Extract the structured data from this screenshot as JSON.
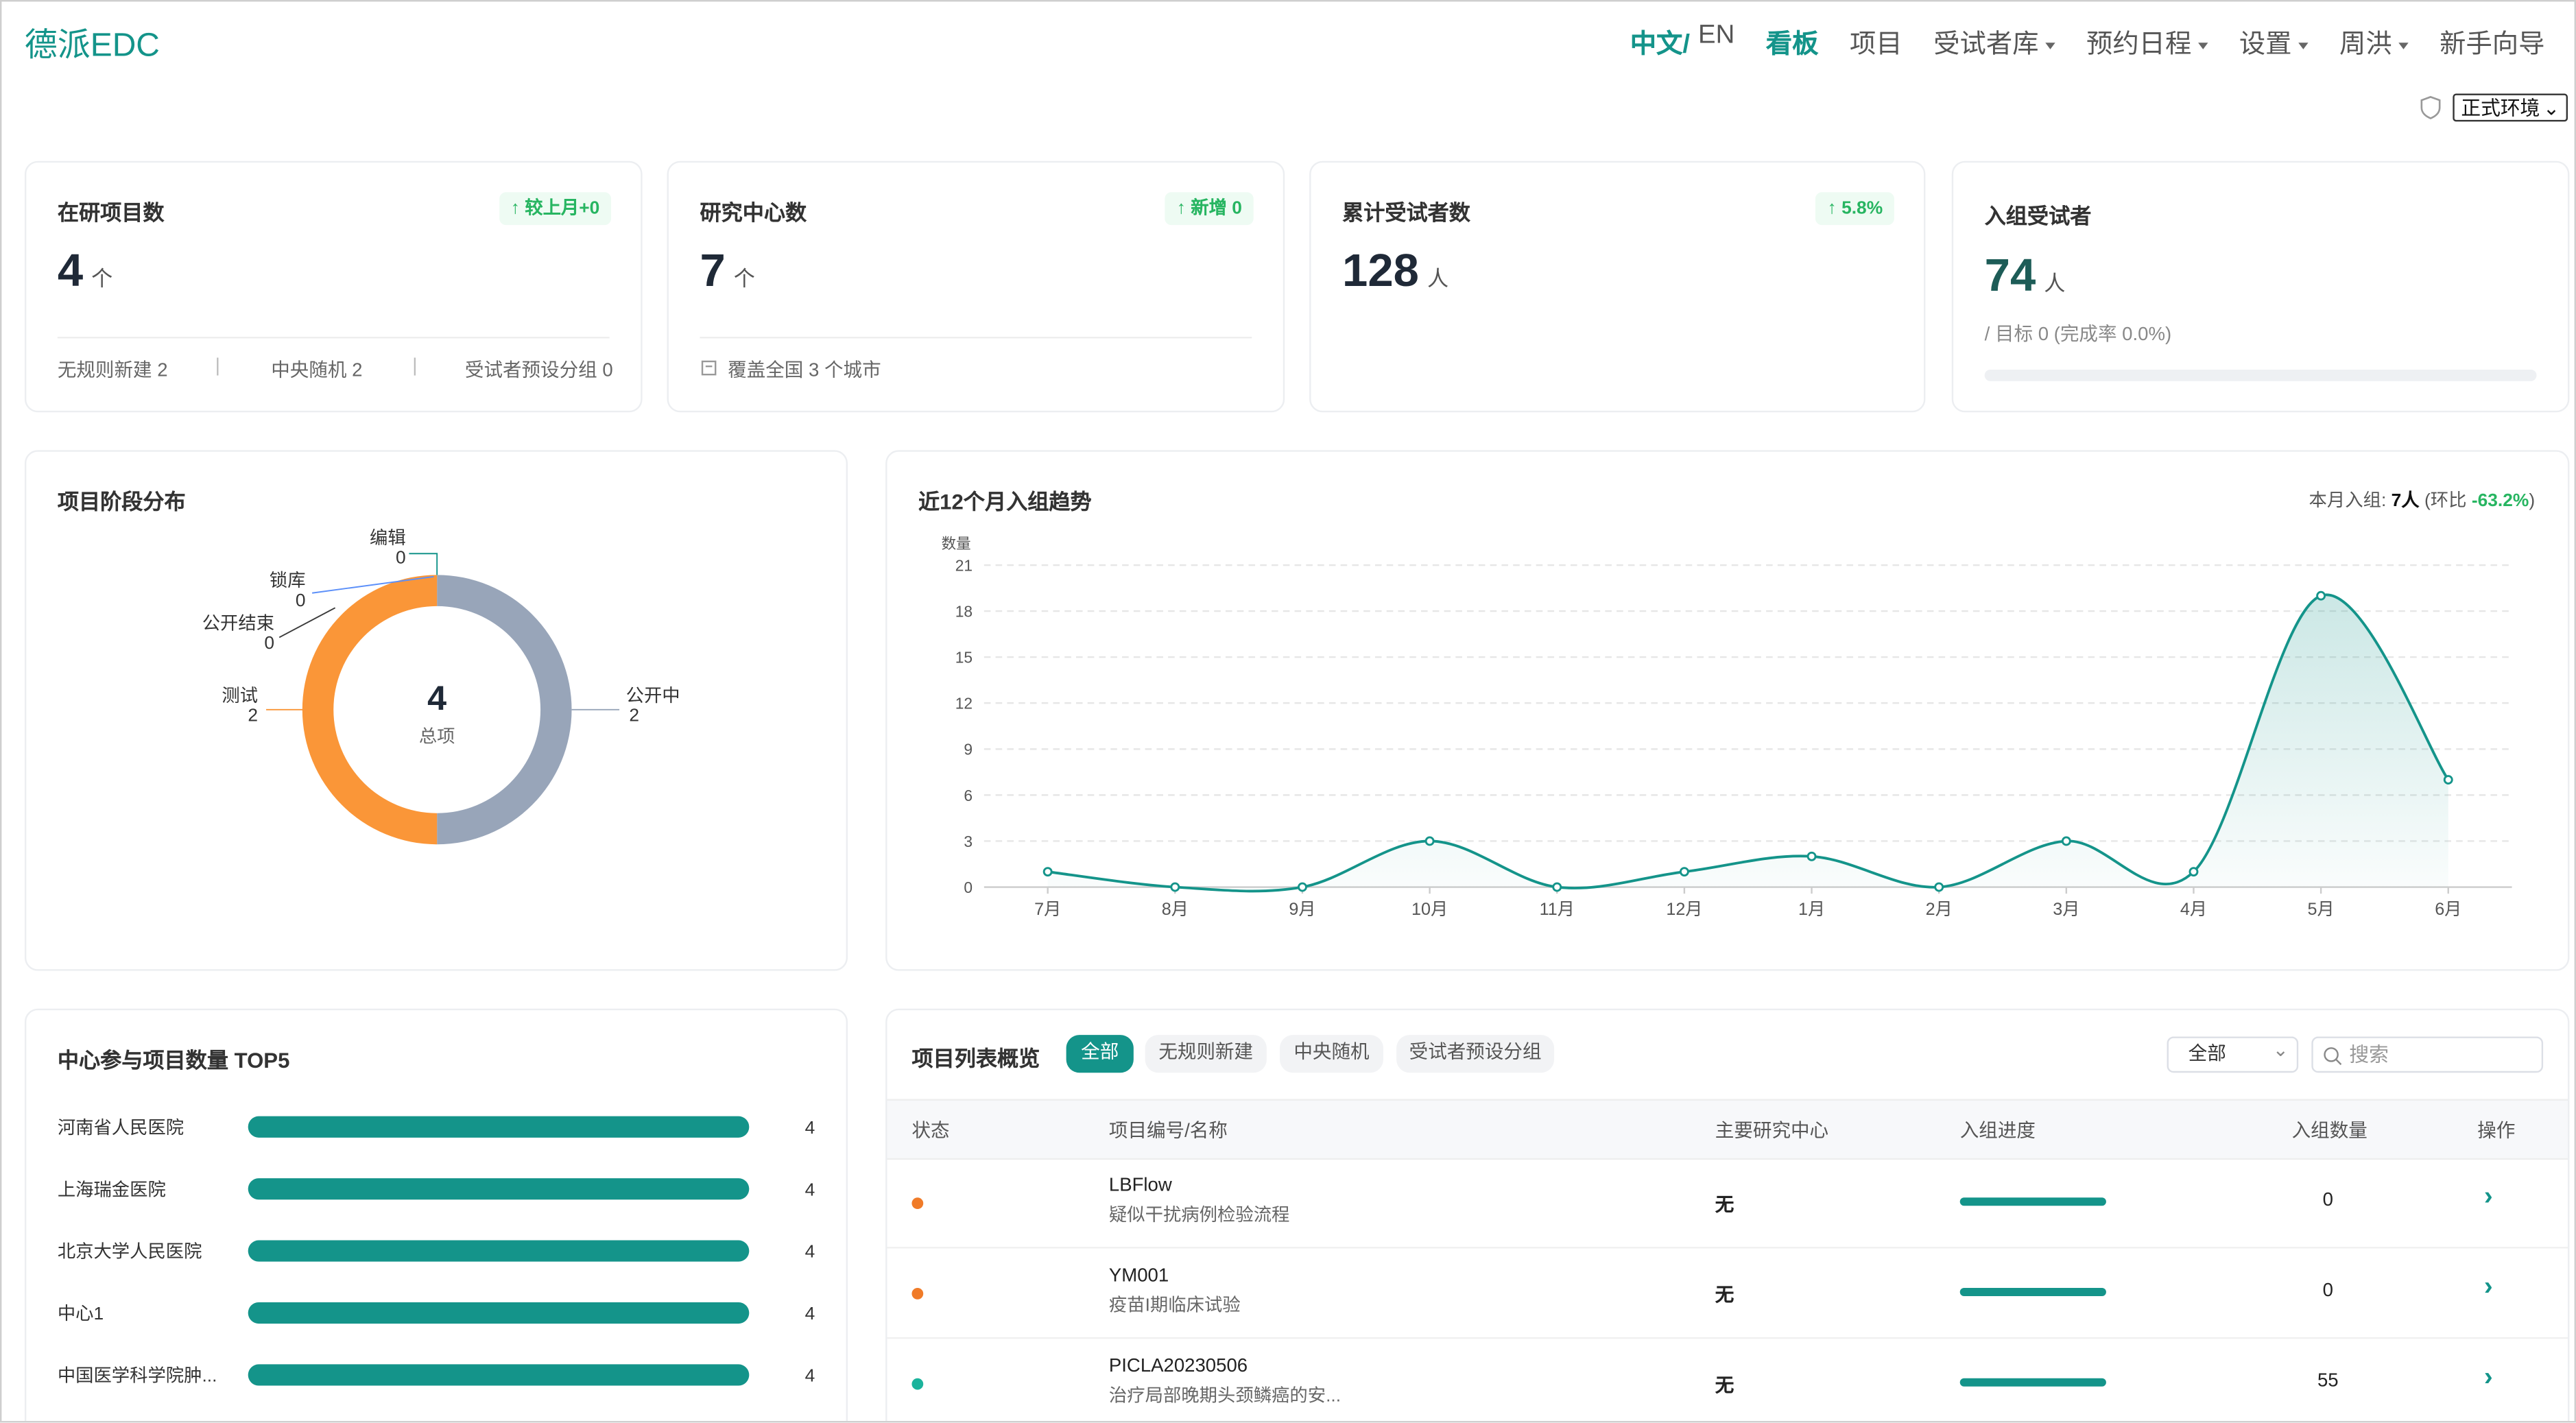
{
  "header": {
    "brand": "德派EDC",
    "nav": [
      "中文/",
      "EN",
      "看板",
      "项目",
      "受试者库",
      "预约日程",
      "设置",
      "周洪",
      "新手向导"
    ],
    "environment": "正式环境"
  },
  "cards": [
    {
      "title": "在研项目数",
      "badge": "较上月+0",
      "value": 4,
      "unit": "个",
      "footer": [
        "无规则新建 2",
        "中央随机 2",
        "受试者预设分组 0"
      ]
    },
    {
      "title": "研究中心数",
      "badge": "新增 0",
      "value": 7,
      "unit": "个",
      "footer": [
        "覆盖全国 3 个城市"
      ]
    },
    {
      "title": "累计受试者数",
      "badge": "5.8%",
      "value": 128,
      "unit": "人"
    },
    {
      "title": "入组受试者",
      "value": 74,
      "unit": "人",
      "note": "/ 目标 0 (完成率 0.0%)"
    }
  ],
  "chart_data": [
    {
      "type": "pie",
      "title": "项目阶段分布",
      "categories": [
        "公开中",
        "测试",
        "公开结束",
        "锁库",
        "编辑"
      ],
      "values": [
        2,
        2,
        0,
        0,
        0
      ],
      "colors": [
        "#98a5b9",
        "#fa9638",
        "#3a3a3a",
        "#5b8ff9",
        "#14948a"
      ],
      "center_value": 4,
      "center_label": "总项"
    },
    {
      "type": "line",
      "title": "近12个月入组趋势",
      "y_label": "数量",
      "summary_label": "本月入组:",
      "summary_value": "7人",
      "summary_change_prefix": "(环比",
      "summary_change": "-63.2%",
      "summary_change_suffix": ")",
      "categories": [
        "7月",
        "8月",
        "9月",
        "10月",
        "11月",
        "12月",
        "1月",
        "2月",
        "3月",
        "4月",
        "5月",
        "6月"
      ],
      "values": [
        1,
        0,
        0,
        3,
        0,
        1,
        2,
        0,
        3,
        1,
        19,
        7
      ],
      "color": "#14948a",
      "ylim": [
        0,
        21
      ],
      "yticks": [
        0,
        3,
        6,
        9,
        12,
        15,
        18,
        21
      ],
      "grid": true
    },
    {
      "type": "bar",
      "title": "中心参与项目数量 TOP5",
      "categories": [
        "河南省人民医院",
        "上海瑞金医院",
        "北京大学人民医院",
        "中心1",
        "中国医学科学院肿..."
      ],
      "values": [
        4,
        4,
        4,
        4,
        4
      ],
      "color": "#14948a"
    }
  ],
  "table": {
    "title": "项目列表概览",
    "tabs": [
      "全部",
      "无规则新建",
      "中央随机",
      "受试者预设分组"
    ],
    "filter": "全部",
    "search_placeholder": "搜索",
    "columns": [
      "状态",
      "项目编号/名称",
      "主要研究中心",
      "入组进度",
      "入组数量",
      "操作"
    ],
    "rows": [
      {
        "status_color": "#f07b28",
        "code": "LBFlow",
        "name": "疑似干扰病例检验流程",
        "center": "无",
        "count": 0
      },
      {
        "status_color": "#f07b28",
        "code": "YM001",
        "name": "疫苗I期临床试验",
        "center": "无",
        "count": 0
      },
      {
        "status_color": "#1bb39c",
        "code": "PICLA20230506",
        "name": "治疗局部晚期头颈鳞癌的安...",
        "center": "无",
        "count": 55
      }
    ]
  }
}
